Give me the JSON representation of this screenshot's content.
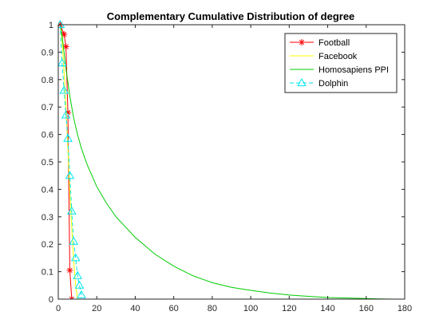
{
  "chart_data": {
    "type": "line",
    "title": "Complementary Cumulative Distribution of degree",
    "xlabel": "",
    "ylabel": "",
    "xlim": [
      0,
      180
    ],
    "ylim": [
      0,
      1
    ],
    "x_ticks": [
      0,
      20,
      40,
      60,
      80,
      100,
      120,
      140,
      160,
      180
    ],
    "y_ticks": [
      0,
      0.1,
      0.2,
      0.3,
      0.4,
      0.5,
      0.6,
      0.7,
      0.8,
      0.9,
      1
    ],
    "grid": false,
    "legend_position": "top-right",
    "series": [
      {
        "name": "Football",
        "color": "#ff0000",
        "marker": "asterisk",
        "line_style": "solid",
        "x": [
          1,
          3,
          4,
          5,
          6,
          7
        ],
        "y": [
          1.0,
          0.965,
          0.92,
          0.68,
          0.105,
          0.0
        ]
      },
      {
        "name": "Facebook",
        "color": "#ffff00",
        "marker": "none",
        "line_style": "solid",
        "x": [
          1,
          2,
          3,
          4,
          5,
          6,
          7,
          8,
          9,
          10
        ],
        "y": [
          1.0,
          0.94,
          0.83,
          0.7,
          0.55,
          0.4,
          0.26,
          0.14,
          0.05,
          0.0
        ]
      },
      {
        "name": "Homosapiens PPI",
        "color": "#00cc00",
        "marker": "none",
        "line_style": "solid",
        "x": [
          1,
          2,
          3,
          4,
          5,
          6,
          8,
          10,
          12,
          15,
          20,
          25,
          30,
          40,
          50,
          60,
          70,
          80,
          90,
          100,
          110,
          120,
          130,
          140,
          150,
          160,
          165,
          170,
          175
        ],
        "y": [
          1.0,
          0.96,
          0.9,
          0.84,
          0.79,
          0.74,
          0.66,
          0.6,
          0.55,
          0.49,
          0.41,
          0.35,
          0.3,
          0.225,
          0.165,
          0.12,
          0.085,
          0.06,
          0.043,
          0.032,
          0.022,
          0.015,
          0.01,
          0.006,
          0.004,
          0.002,
          0.001,
          0.0005,
          0.0
        ]
      },
      {
        "name": "Dolphin",
        "color": "#00e5ee",
        "marker": "triangle",
        "line_style": "dashed",
        "x": [
          1,
          2,
          3,
          4,
          5,
          6,
          7,
          8,
          9,
          10,
          11,
          12
        ],
        "y": [
          1.0,
          0.86,
          0.76,
          0.67,
          0.585,
          0.45,
          0.32,
          0.21,
          0.15,
          0.085,
          0.05,
          0.015
        ]
      }
    ]
  }
}
